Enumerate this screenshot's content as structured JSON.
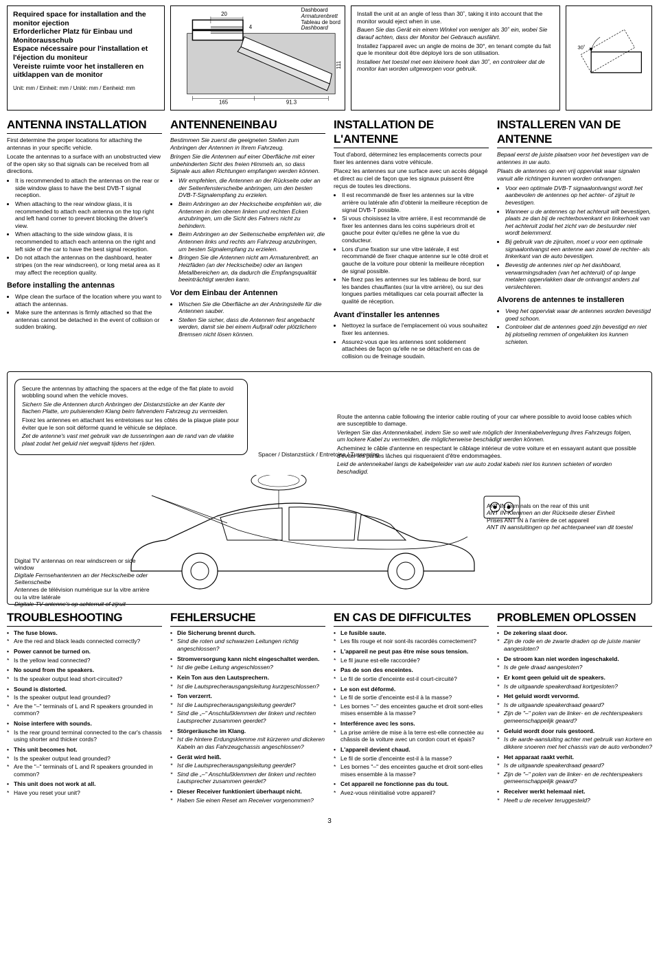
{
  "page_number": "3",
  "top": {
    "title_en": "Required space for installation and the monitor ejection",
    "title_de": "Erforderlicher Platz für Einbau und Monitorausschub",
    "title_fr": "Espace nécessaire pour l'installation et l'éjection du moniteur",
    "title_nl": "Vereiste ruimte voor het installeren en uitklappen van de monitor",
    "unit_line": "Unit: mm / Einheit: mm / Unité: mm / Eenheid: mm",
    "dim_20": "20",
    "dim_4": "4",
    "dim_111": "111",
    "dim_165": "165",
    "dim_913": "91.3",
    "dash_en": "Dashboard",
    "dash_de": "Armaturenbrett",
    "dash_fr": "Tableau de bord",
    "dash_nl": "Dashboard",
    "angle_en": "Install the unit at an angle of less than 30˚, taking it into account that the monitor would eject when in use.",
    "angle_de": "Bauen Sie das Gerät ein einem Winkel von weniger als 30˚ ein, wobei Sie darauf achten, dass der Monitor bei Gebrauch ausfährt.",
    "angle_fr": "Installez l'appareil avec un angle de moins de 30°, en tenant compte du fait que le moniteur doit être déployé lors de son utilisation.",
    "angle_nl": "Installeer het toestel met een kleinere hoek dan 30˚, en controleer dat de monitor kan worden uitgeworpen voor gebruik.",
    "angle_30": "30˚"
  },
  "antenna": {
    "h_en": "ANTENNA INSTALLATION",
    "h_de": "ANTENNENEINBAU",
    "h_fr": "INSTALLATION DE L'ANTENNE",
    "h_nl": "INSTALLEREN VAN DE ANTENNE",
    "en_intro1": "First determine the proper locations for attaching the antennas in your specific vehicle.",
    "en_intro2": "Locate the antennas to a surface with an unobstructed view of the open sky so that signals can be received from all directions.",
    "en_b1": "It is recommended to attach the antennas on the rear or side window glass to have the best DVB-T signal reception.",
    "en_b2": "When attaching to the rear window glass, it is recommended to attach each antenna on the top right and left hand corner to prevent blocking the driver's view.",
    "en_b3": "When attaching to the side window glass, it is recommended to attach each antenna on the right and left side of the car to have the best signal reception.",
    "en_b4": "Do not attach the antennas on the dashboard, heater stripes (on the rear windscreen), or long metal area as it may affect the reception quality.",
    "de_intro1": "Bestimmen Sie zuerst die geeigneten Stellen zum Anbringen der Antennen in Ihrem Fahrzeug.",
    "de_intro2": "Bringen Sie die Antennen auf einer Oberfläche mit einer unbehinderten Sicht des freien Himmels an, so dass Signale aus allen Richtungen empfangen werden können.",
    "de_b1": "Wir empfehlen, die Antennen an der Rückseite oder an der Seitenfensterscheibe anbringen, um den besten DVB-T-Signalempfang zu erzielen.",
    "de_b2": "Beim Anbringen an der Heckscheibe empfehlen wir, die Antennen in den oberen linken und rechten Ecken anzubringen, um die Sicht des Fahrers nicht zu behindern.",
    "de_b3": "Beim Anbringen an der Seitenscheibe empfehlen wir, die Antennen links und rechts am Fahrzeug anzubringen, um besten Signalempfang zu erzielen.",
    "de_b4": "Bringen Sie die Antennen nicht am Armaturenbrett, an Heizfäden (an der Heckscheibe) oder an langen Metallbereichen an, da dadurch die Empfangsqualität beeinträchtigt werden kann.",
    "fr_intro1": "Tout d'abord, déterminez les emplacements corrects pour fixer les antennes dans votre véhicule.",
    "fr_intro2": "Placez les antennes sur une surface avec un accès dégagé et direct au ciel de façon que les signaux puissent être reçus de toutes les directions.",
    "fr_b1": "Il est recommandé de fixer les antennes sur la vitre arrière ou latérale afin d'obtenir la meilleure réception de signal DVB-T possible.",
    "fr_b2": "Si vous choisissez la vitre arrière, il est recommandé de fixer les antennes dans les coins supérieurs droit et gauche pour éviter qu'elles ne gêne la vue du conducteur.",
    "fr_b3": "Lors d'une fixation sur une vitre latérale, il est recommandé de fixer chaque antenne sur le côté droit et gauche de la voiture pour obtenir la meilleure réception de signal possible.",
    "fr_b4": "Ne fixez pas les antennes sur les tableau de bord, sur les bandes chauffantes (sur la vitre arrière), ou sur des longues parties métalliques car cela pourrait affecter la qualité de réception.",
    "nl_intro1": "Bepaal eerst de juiste plaatsen voor het bevestigen van de antennes in uw auto.",
    "nl_intro2": "Plaats de antennes op een vrij oppervlak waar signalen vanuit alle richtingen kunnen worden ontvangen.",
    "nl_b1": "Voor een optimale DVB-T signaalontvangst wordt het aanbevolen de antennes op het achter- of zijruit te bevestigen.",
    "nl_b2": "Wanneer u de antennes op het achteruit wilt bevestigen, plaats ze dan bij de rechterbovenkant en linkerhoek van het achteruit zodat het zicht van de bestuurder niet wordt belemmerd.",
    "nl_b3": "Bij gebruik van de zijruiten, moet u voor een optimale signaalontvangst een antenne aan zowel de rechter- als linkerkant van de auto bevestigen.",
    "nl_b4": "Bevestig de antennes niet op het dashboard, verwarmingsdraden (van het achteruit) of op lange metalen oppervlakken daar de ontvangst anders zal verslechteren.",
    "sub_en": "Before installing the antennas",
    "sub_de": "Vor dem Einbau der Antennen",
    "sub_fr": "Avant d'installer les antennes",
    "sub_nl": "Alvorens de antennes te installeren",
    "en_s1": "Wipe clean the surface of the location where you want to attach the antennas.",
    "en_s2": "Make sure the antennas is firmly attached so that the antennas cannot be detached in the event of collision or sudden braking.",
    "de_s1": "Wischen Sie die Oberfläche an der Anbringstelle für die Antennen sauber.",
    "de_s2": "Stellen Sie sicher, dass die Antennen fest angebacht werden, damit sie bei einem Aufprall oder plötzlichem Bremsen nicht lösen können.",
    "fr_s1": "Nettoyez la surface de l'emplacement où vous souhaitez fixer les antennes.",
    "fr_s2": "Assurez-vous que les antennes sont solidement attachées de façon qu'elle ne se détachent en cas de collision ou de freinage soudain.",
    "nl_s1": "Veeg het oppervlak waar de antennes worden bevestigd goed schoon.",
    "nl_s2": "Controleer dat de antennes goed zijn bevestigd en niet bij plotseling remmen of ongelukken los kunnen schieten."
  },
  "diagram": {
    "adv_en": "Secure the antennas by attaching the spacers at the edge of the flat plate to avoid wobbling sound when the vehicle moves.",
    "adv_de": "Sichern Sie die Antennen durch Anbringen der Distanzstücke an der Kante der flachen Platte, um pulsierenden Klang beim fahrendem Fahrzeug zu vermeiden.",
    "adv_fr": "Fixez les antennes en attachant les entretoises sur les côtés de la plaque plate pour éviter que le son soit déformé quand le véhicule se déplace.",
    "adv_nl": "Zet de antenne's vast met gebruik van de tussenringen aan de rand van de vlakke plaat zodat het geluid niet wegvalt tijdens het rijden.",
    "spacer": "Spacer / Distanzstück / Entretoise / Tussenring",
    "route_en": "Route the antenna cable following the interior cable routing of your car where possible to avoid loose cables which are susceptible to damage.",
    "route_de": "Verlegen Sie das Antennenkabel, indem Sie so weit wie möglich der Innenkabelverlegung Ihres Fahrzeugs folgen, um lockere Kabel zu vermeiden, die möglicherweise beschädigt werden können.",
    "route_fr": "Acheminez le câble d'antenne en respectant le câblage intérieur de votre voiture et en essayant autant que possible d'éviter les parties lâches qui risqueraient d'être endommagées.",
    "route_nl": "Leid de antennekabel langs de kabelgeleider van uw auto zodat kabels niet los kunnen schieten of worden beschadigd.",
    "ant_label_en": "Digital TV antennas on rear windscreen or side window",
    "ant_label_de": "Digitale Fernsehantennen an der Heckscheibe oder Seitenscheibe",
    "ant_label_fr": "Antennes de télévision numérique sur la vitre arrière ou la vitre latérale",
    "ant_label_nl": "Digitale TV-antenne's op achterruit of zijruit",
    "antin_en": "ANT IN terminals on the rear of this unit",
    "antin_de": "ANT IN-Klemmen an der Rückseite dieser Einheit",
    "antin_fr": "Prises ANT IN à l'arrière de cet appareil",
    "antin_nl": "ANT IN aansluitingen op het achterpaneel van dit toestel"
  },
  "trouble": {
    "h_en": "TROUBLESHOOTING",
    "h_de": "FEHLERSUCHE",
    "h_fr": "EN CAS DE DIFFICULTES",
    "h_nl": "PROBLEMEN OPLOSSEN",
    "en": [
      {
        "t": "i",
        "v": "The fuse blows."
      },
      {
        "t": "c",
        "v": "Are the red and black leads connected correctly?"
      },
      {
        "t": "i",
        "v": "Power cannot be turned on."
      },
      {
        "t": "c",
        "v": "Is the yellow lead connected?"
      },
      {
        "t": "i",
        "v": "No sound from the speakers."
      },
      {
        "t": "c",
        "v": "Is the speaker output lead short-circuited?"
      },
      {
        "t": "i",
        "v": "Sound is distorted."
      },
      {
        "t": "c",
        "v": "Is the speaker output lead grounded?"
      },
      {
        "t": "c",
        "v": "Are the \"–\" terminals of L and R speakers grounded in common?"
      },
      {
        "t": "i",
        "v": "Noise interfere with sounds."
      },
      {
        "t": "c",
        "v": "Is the rear ground terminal connected to the car's chassis using shorter and thicker cords?"
      },
      {
        "t": "i",
        "v": "This unit becomes hot."
      },
      {
        "t": "c",
        "v": "Is the speaker output lead grounded?"
      },
      {
        "t": "c",
        "v": "Are the \"–\" terminals of L and R speakers grounded in common?"
      },
      {
        "t": "i",
        "v": "This unit does not work at all."
      },
      {
        "t": "c",
        "v": "Have you reset your unit?"
      }
    ],
    "de": [
      {
        "t": "i",
        "v": "Die Sicherung brennt durch."
      },
      {
        "t": "c",
        "v": "Sind die roten und schwarzen Leitungen richtig angeschlossen?"
      },
      {
        "t": "i",
        "v": "Stromversorgung kann nicht eingeschaltet werden."
      },
      {
        "t": "c",
        "v": "Ist die gelbe Leitung angeschlossen?"
      },
      {
        "t": "i",
        "v": "Kein Ton aus den Lautsprechern."
      },
      {
        "t": "c",
        "v": "Ist die Lautsprecherausgangsleitung kurzgeschlossen?"
      },
      {
        "t": "i",
        "v": "Ton verzerrt."
      },
      {
        "t": "c",
        "v": "Ist die Lautsprecherausgangsleitung geerdet?"
      },
      {
        "t": "c",
        "v": "Sind die „–\" Anschlußklemmen der linken und rechten Lautsprecher zusammen geerdet?"
      },
      {
        "t": "i",
        "v": "Störgeräusche im Klang."
      },
      {
        "t": "c",
        "v": "Ist die hintere Erdungsklemme mit kürzeren und dickeren Kabeln an das Fahrzeugchassis angeschlossen?"
      },
      {
        "t": "i",
        "v": "Gerät wird heiß."
      },
      {
        "t": "c",
        "v": "Ist die Lautsprecherausgangsleitung geerdet?"
      },
      {
        "t": "c",
        "v": "Sind die „–\" Anschlußklemmen der linken und rechten Lautsprecher zusammen geerdet?"
      },
      {
        "t": "i",
        "v": "Dieser Receiver funktioniert überhaupt nicht."
      },
      {
        "t": "c",
        "v": "Haben Sie einen Reset am Receiver vorgenommen?"
      }
    ],
    "fr": [
      {
        "t": "i",
        "v": "Le fusible saute."
      },
      {
        "t": "c",
        "v": "Les fils rouge et noir sont-ils racordés correctement?"
      },
      {
        "t": "i",
        "v": "L'appareil ne peut pas être mise sous tension."
      },
      {
        "t": "c",
        "v": "Le fil jaune est-elle raccordée?"
      },
      {
        "t": "i",
        "v": "Pas de son des enceintes."
      },
      {
        "t": "c",
        "v": "Le fil de sortie d'enceinte est-il court-circuité?"
      },
      {
        "t": "i",
        "v": "Le son est déformé."
      },
      {
        "t": "c",
        "v": "Le fil de sortie d'enceinte est-il à la masse?"
      },
      {
        "t": "c",
        "v": "Les bornes \"–\" des enceintes gauche et droit sont-elles mises ensemble à la masse?"
      },
      {
        "t": "i",
        "v": "Interférence avec les sons."
      },
      {
        "t": "c",
        "v": "La prise arrière de mise à la terre est-elle connectée au châssis de la voiture avec un cordon court et épais?"
      },
      {
        "t": "i",
        "v": "L'appareil devient chaud."
      },
      {
        "t": "c",
        "v": "Le fil de sortie d'enceinte est-il à la masse?"
      },
      {
        "t": "c",
        "v": "Les bornes \"–\" des enceintes gauche et droit sont-elles mises ensemble à la masse?"
      },
      {
        "t": "i",
        "v": "Cet appareil ne fonctionne pas du tout."
      },
      {
        "t": "c",
        "v": "Avez-vous réinitialisé votre appareil?"
      }
    ],
    "nl": [
      {
        "t": "i",
        "v": "De zekering slaat door."
      },
      {
        "t": "c",
        "v": "Zijn de rode en de zwarte draden op de juiste manier aangesloten?"
      },
      {
        "t": "i",
        "v": "De stroom kan niet worden ingeschakeld."
      },
      {
        "t": "c",
        "v": "Is de gele draad aangesloten?"
      },
      {
        "t": "i",
        "v": "Er komt geen geluid uit de speakers."
      },
      {
        "t": "c",
        "v": "Is de uitgaande speakerdraad kortgesloten?"
      },
      {
        "t": "i",
        "v": "Het geluid wordt vervormd."
      },
      {
        "t": "c",
        "v": "Is de uitgaande speakerdraad geaard?"
      },
      {
        "t": "c",
        "v": "Zijn de \"–\" polen van de linker- en de rechterspeakers gemeenschappelijk geaard?"
      },
      {
        "t": "i",
        "v": "Geluid wordt door ruis gestoord."
      },
      {
        "t": "c",
        "v": "Is de aarde-aansluiting achter met gebruik van kortere en dikkere snoeren met het chassis van de auto verbonden?"
      },
      {
        "t": "i",
        "v": "Het apparaat raakt verhit."
      },
      {
        "t": "c",
        "v": "Is de uitgaande speakerdraad geaard?"
      },
      {
        "t": "c",
        "v": "Zijn de \"–\" polen van de linker- en de rechterspeakers gemeenschappelijk geaard?"
      },
      {
        "t": "i",
        "v": "Receiver werkt helemaal niet."
      },
      {
        "t": "c",
        "v": "Heeft u de receiver teruggesteld?"
      }
    ]
  }
}
